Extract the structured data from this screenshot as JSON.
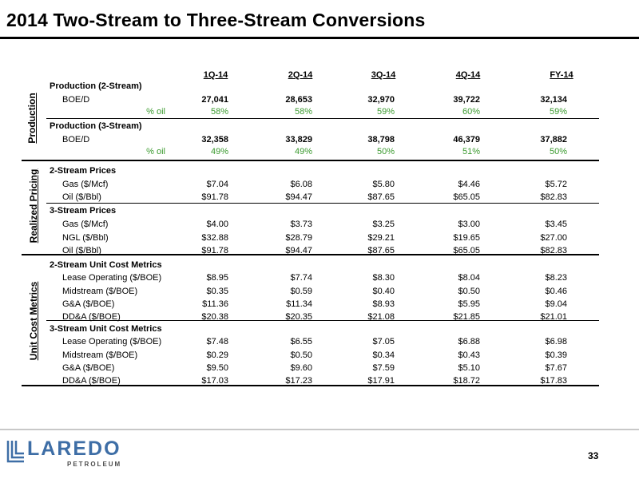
{
  "title": "2014 Two-Stream to Three-Stream Conversions",
  "columns": [
    "1Q-14",
    "2Q-14",
    "3Q-14",
    "4Q-14",
    "FY-14"
  ],
  "sections": [
    {
      "label": "Production",
      "groups": [
        {
          "header": "Production (2-Stream)",
          "rows": [
            {
              "label": "BOE/D",
              "values": [
                "27,041",
                "28,653",
                "32,970",
                "39,722",
                "32,134"
              ],
              "style": "boe"
            },
            {
              "label": "% oil",
              "values": [
                "58%",
                "58%",
                "59%",
                "60%",
                "59%"
              ],
              "style": "pct"
            }
          ]
        },
        {
          "header": "Production (3-Stream)",
          "rows": [
            {
              "label": "BOE/D",
              "values": [
                "32,358",
                "33,829",
                "38,798",
                "46,379",
                "37,882"
              ],
              "style": "boe"
            },
            {
              "label": "% oil",
              "values": [
                "49%",
                "49%",
                "50%",
                "51%",
                "50%"
              ],
              "style": "pct"
            }
          ]
        }
      ]
    },
    {
      "label": "Realized Pricing",
      "groups": [
        {
          "header": "2-Stream Prices",
          "rows": [
            {
              "label": "Gas ($/Mcf)",
              "values": [
                "$7.04",
                "$6.08",
                "$5.80",
                "$4.46",
                "$5.72"
              ]
            },
            {
              "label": "Oil ($/Bbl)",
              "values": [
                "$91.78",
                "$94.47",
                "$87.65",
                "$65.05",
                "$82.83"
              ]
            }
          ]
        },
        {
          "header": "3-Stream Prices",
          "rows": [
            {
              "label": "Gas ($/Mcf)",
              "values": [
                "$4.00",
                "$3.73",
                "$3.25",
                "$3.00",
                "$3.45"
              ]
            },
            {
              "label": "NGL ($/Bbl)",
              "values": [
                "$32.88",
                "$28.79",
                "$29.21",
                "$19.65",
                "$27.00"
              ]
            },
            {
              "label": "Oil ($/Bbl)",
              "values": [
                "$91.78",
                "$94.47",
                "$87.65",
                "$65.05",
                "$82.83"
              ]
            }
          ]
        }
      ]
    },
    {
      "label": "Unit Cost Metrics",
      "groups": [
        {
          "header": "2-Stream Unit Cost Metrics",
          "rows": [
            {
              "label": "Lease Operating ($/BOE)",
              "values": [
                "$8.95",
                "$7.74",
                "$8.30",
                "$8.04",
                "$8.23"
              ]
            },
            {
              "label": "Midstream ($/BOE)",
              "values": [
                "$0.35",
                "$0.59",
                "$0.40",
                "$0.50",
                "$0.46"
              ]
            },
            {
              "label": "G&A ($/BOE)",
              "values": [
                "$11.36",
                "$11.34",
                "$8.93",
                "$5.95",
                "$9.04"
              ]
            },
            {
              "label": "DD&A ($/BOE)",
              "values": [
                "$20.38",
                "$20.35",
                "$21.08",
                "$21.85",
                "$21.01"
              ]
            }
          ]
        },
        {
          "header": "3-Stream Unit Cost Metrics",
          "rows": [
            {
              "label": "Lease Operating ($/BOE)",
              "values": [
                "$7.48",
                "$6.55",
                "$7.05",
                "$6.88",
                "$6.98"
              ]
            },
            {
              "label": "Midstream ($/BOE)",
              "values": [
                "$0.29",
                "$0.50",
                "$0.34",
                "$0.43",
                "$0.39"
              ]
            },
            {
              "label": "G&A ($/BOE)",
              "values": [
                "$9.50",
                "$9.60",
                "$7.59",
                "$5.10",
                "$7.67"
              ]
            },
            {
              "label": "DD&A ($/BOE)",
              "values": [
                "$17.03",
                "$17.23",
                "$17.91",
                "$18.72",
                "$17.83"
              ]
            }
          ]
        }
      ]
    }
  ],
  "logo": {
    "name": "LAREDO",
    "sub": "PETROLEUM",
    "primary_color": "#3e6ea6",
    "secondary_color": "#4c4c4c"
  },
  "page_number": "33"
}
